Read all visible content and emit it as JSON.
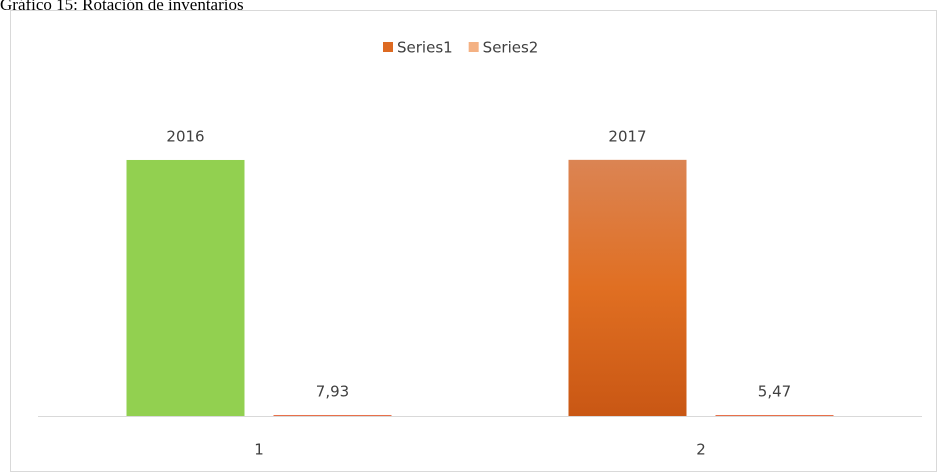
{
  "chart_data": {
    "type": "bar",
    "title": "Gráfico 15: Rotación de inventarios",
    "categories": [
      "1",
      "2"
    ],
    "series": [
      {
        "name": "Series1",
        "color": "#dd6a22",
        "point_colors": [
          "#92d050",
          "#dd6a22"
        ],
        "values": [
          2016,
          2017
        ],
        "value_labels": [
          "2016",
          "2017"
        ]
      },
      {
        "name": "Series2",
        "color": "#f4b183",
        "point_colors": [
          "#e8704a",
          "#e8704a"
        ],
        "values": [
          7.93,
          5.47
        ],
        "value_labels": [
          "7,93",
          "5,47"
        ]
      }
    ],
    "ylim": [
      0,
      2500
    ],
    "legend": "top"
  }
}
